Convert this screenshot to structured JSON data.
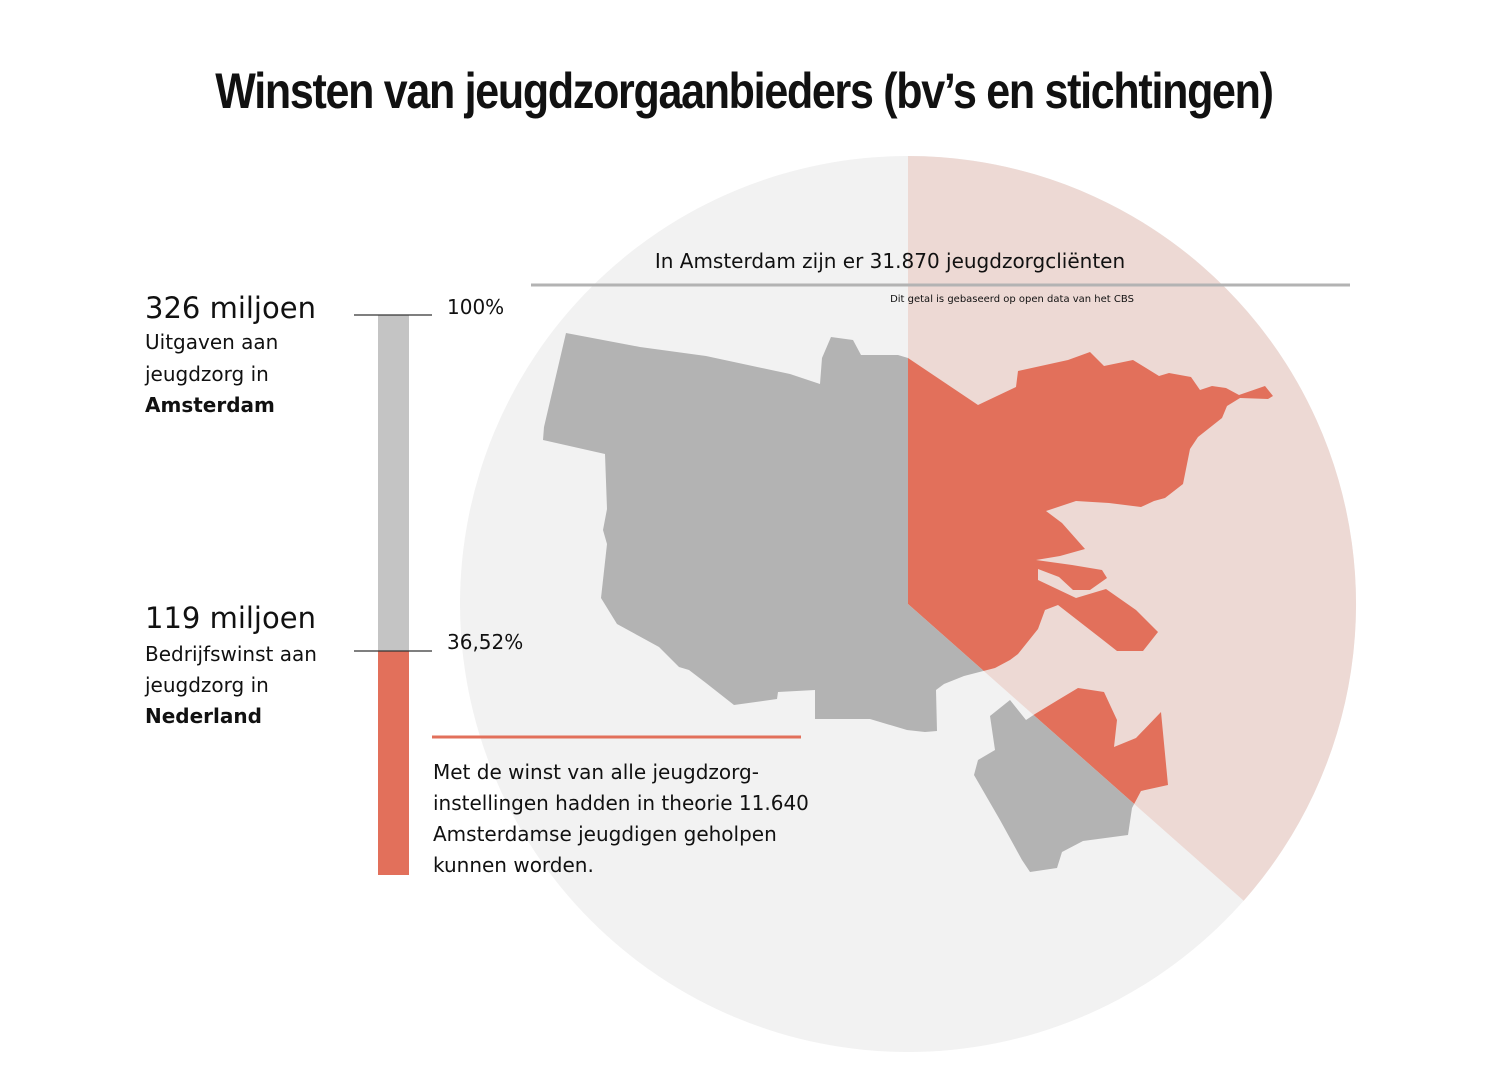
{
  "title": "Winsten van jeugdzorgaanbieders (bv’s en stichtingen)",
  "chart_data": {
    "type": "stacked bar + pie",
    "bar": {
      "total": {
        "value_label": "326 miljoen",
        "desc_1": "Uitgaven aan",
        "desc_2": "jeugdzorg in",
        "desc_bold": "Amsterdam",
        "percent_label": "100%",
        "percent": 100
      },
      "part": {
        "value_label": "119 miljoen",
        "desc_1": "Bedrijfswinst aan",
        "desc_2": "jeugdzorg in",
        "desc_bold": "Nederland",
        "percent_label": "36,52%",
        "percent": 36.52
      }
    },
    "pie": {
      "header": "In Amsterdam zijn er 31.870 jeugdzorgcliënten",
      "note": "Dit getal is gebaseerd op open data van het CBS",
      "share": 0.3652
    },
    "callout": [
      "Met de winst van alle jeugdzorg-",
      "instellingen hadden in theorie 11.640",
      "Amsterdamse jeugdigen geholpen",
      "kunnen worden."
    ],
    "colors": {
      "highlight": "#e2705b",
      "highlight_light": "#edd9d4",
      "grey": "#b3b3b3",
      "grey_bar": "#c4c4c4",
      "pie_bg": "#f2f2f2"
    }
  }
}
